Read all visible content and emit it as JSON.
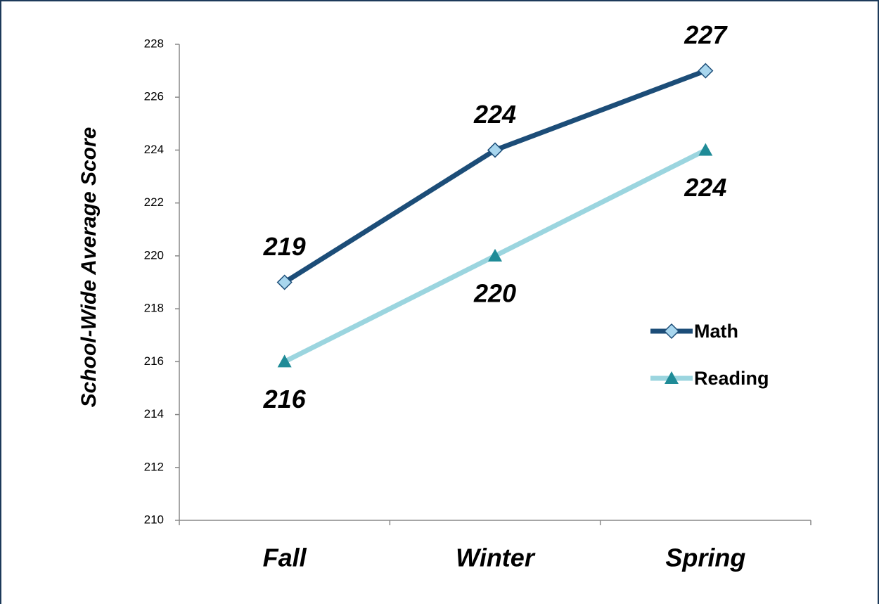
{
  "chart_data": {
    "type": "line",
    "y_label": "School-Wide Average Score",
    "categories": [
      "Fall",
      "Winter",
      "Spring"
    ],
    "series": [
      {
        "name": "Math",
        "color": "#1c4d78",
        "marker": "diamond",
        "marker_color": "#a8d6ee",
        "label_position": "above",
        "values": [
          219,
          224,
          227
        ]
      },
      {
        "name": "Reading",
        "color": "#9bd5df",
        "marker": "triangle",
        "marker_color": "#1f8b97",
        "label_position": "below",
        "values": [
          216,
          220,
          224
        ]
      }
    ],
    "ylim": [
      210,
      228
    ],
    "yticks": [
      210,
      212,
      214,
      216,
      218,
      220,
      222,
      224,
      226,
      228
    ],
    "grid": false,
    "legend": "right"
  }
}
